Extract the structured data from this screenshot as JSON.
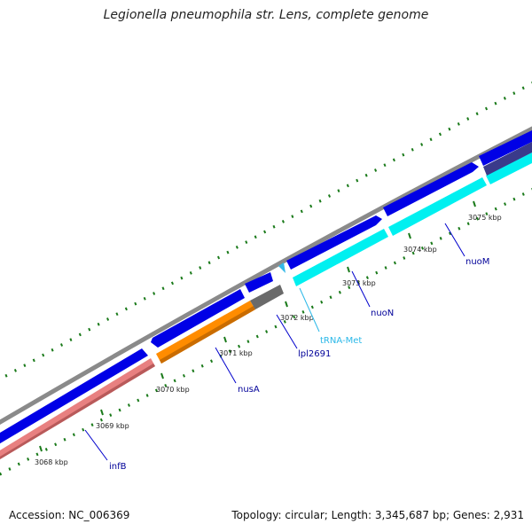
{
  "title": "Legionella pneumophila str. Lens, complete genome",
  "colors": {
    "background": "#ffffff",
    "backbone": "#808080",
    "forward_cds": "#0000e6",
    "trna": "#00d8e8",
    "rrna_like": "#ff8c00",
    "pseudo": "#6a6a6a",
    "infB": "#e88080",
    "ticks": "#1a7a1a",
    "label_line": "#0000cc",
    "label_text": "#000099",
    "trna_label": "#2ab8e8"
  },
  "scale": {
    "ticks": [
      {
        "label": "3068 kbp"
      },
      {
        "label": "3069 kbp"
      },
      {
        "label": "3070 kbp"
      },
      {
        "label": "3071 kbp"
      },
      {
        "label": "3072 kbp"
      },
      {
        "label": "3073 kbp"
      },
      {
        "label": "3074 kbp"
      },
      {
        "label": "3075 kbp"
      }
    ]
  },
  "genes": [
    {
      "name": "infB",
      "color": "#000099"
    },
    {
      "name": "nusA",
      "color": "#000099"
    },
    {
      "name": "lpl2691",
      "color": "#000099"
    },
    {
      "name": "tRNA-Met",
      "color": "#2ab8e8"
    },
    {
      "name": "nuoN",
      "color": "#000099"
    },
    {
      "name": "nuoM",
      "color": "#000099"
    }
  ],
  "footer": {
    "accession": "Accession: NC_006369",
    "summary": "Topology: circular; Length: 3,345,687 bp; Genes: 2,931"
  }
}
